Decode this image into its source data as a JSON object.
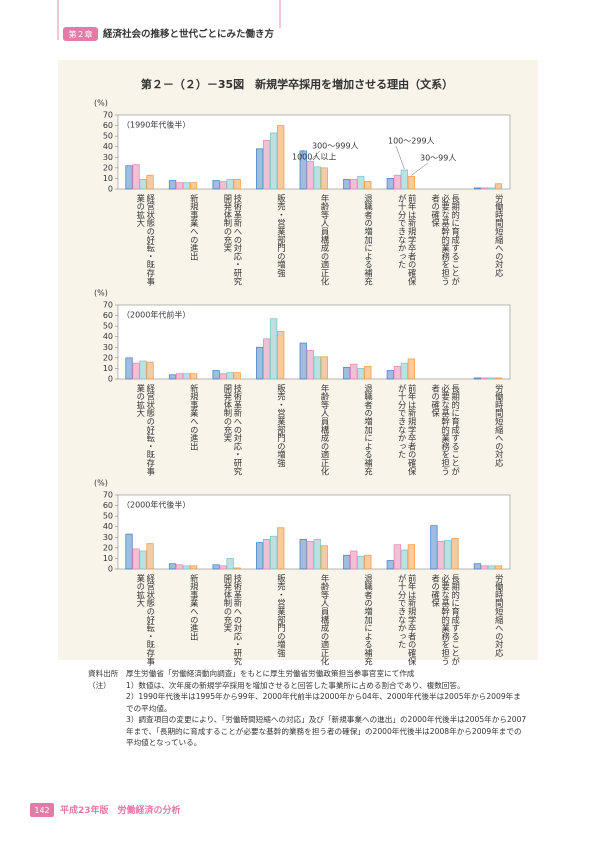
{
  "header": {
    "chapter": "第２章",
    "title": "経済社会の推移と世代ごとにみた働き方"
  },
  "figure_title": "第２－（２）－35図　新規学卒採用を増加させる理由（文系）",
  "chart_data": [
    {
      "type": "bar",
      "y_unit": "(%)",
      "subtitle": "（1990年代後半）",
      "categories": [
        "経営状態の好転・既存事業の拡大",
        "新規事業への進出",
        "技術革新への対応・研究開発体制の充実",
        "販売・営業部門の増強",
        "年齢等人員構成の適正化",
        "退職者の増加による補充",
        "前年は新規学卒者の確保が十分できなかった",
        "長期的に育成することが必要な基幹的業務を担う者の確保",
        "労働時間短縮への対応"
      ],
      "series": [
        {
          "name": "1000人以上",
          "color": "#4f86c6",
          "values": [
            22,
            8,
            8,
            38,
            36,
            9,
            10,
            null,
            1
          ]
        },
        {
          "name": "300～999人",
          "color": "#e58db6",
          "values": [
            23,
            6,
            7,
            46,
            26,
            9,
            13,
            null,
            1
          ]
        },
        {
          "name": "100～299人",
          "color": "#86c7c9",
          "values": [
            9,
            6,
            9,
            53,
            21,
            12,
            18,
            null,
            1
          ]
        },
        {
          "name": "30～99人",
          "color": "#f0a050",
          "values": [
            13,
            6,
            9,
            60,
            20,
            7,
            12,
            null,
            5
          ]
        }
      ],
      "ylim": [
        0,
        70
      ],
      "yticks": [
        0,
        10,
        20,
        30,
        40,
        50,
        60,
        70
      ]
    },
    {
      "type": "bar",
      "y_unit": "(%)",
      "subtitle": "（2000年代前半）",
      "categories": [
        "経営状態の好転・既存事業の拡大",
        "新規事業への進出",
        "技術革新への対応・研究開発体制の充実",
        "販売・営業部門の増強",
        "年齢等人員構成の適正化",
        "退職者の増加による補充",
        "前年は新規学卒者の確保が十分できなかった",
        "長期的に育成することが必要な基幹的業務を担う者の確保",
        "労働時間短縮への対応"
      ],
      "series": [
        {
          "color": "#4f86c6",
          "values": [
            20,
            4,
            8,
            30,
            34,
            11,
            8,
            null,
            1
          ]
        },
        {
          "color": "#e58db6",
          "values": [
            15,
            5,
            5,
            38,
            27,
            14,
            12,
            null,
            1
          ]
        },
        {
          "color": "#86c7c9",
          "values": [
            17,
            5,
            6,
            57,
            21,
            10,
            15,
            null,
            1
          ]
        },
        {
          "color": "#f0a050",
          "values": [
            16,
            5,
            6,
            45,
            21,
            12,
            19,
            null,
            1
          ]
        }
      ],
      "ylim": [
        0,
        70
      ],
      "yticks": [
        0,
        10,
        20,
        30,
        40,
        50,
        60,
        70
      ]
    },
    {
      "type": "bar",
      "y_unit": "(%)",
      "subtitle": "（2000年代後半）",
      "categories": [
        "経営状態の好転・既存事業の拡大",
        "新規事業への進出",
        "技術革新への対応・研究開発体制の充実",
        "販売・営業部門の増強",
        "年齢等人員構成の適正化",
        "退職者の増加による補充",
        "前年は新規学卒者の確保が十分できなかった",
        "長期的に育成することが必要な基幹的業務を担う者の確保",
        "労働時間短縮への対応"
      ],
      "series": [
        {
          "color": "#4f86c6",
          "values": [
            33,
            5,
            4,
            25,
            28,
            13,
            8,
            41,
            5
          ]
        },
        {
          "color": "#e58db6",
          "values": [
            19,
            4,
            3,
            28,
            26,
            17,
            23,
            26,
            3
          ]
        },
        {
          "color": "#86c7c9",
          "values": [
            17,
            3,
            10,
            31,
            28,
            12,
            18,
            27,
            3
          ]
        },
        {
          "color": "#f0a050",
          "values": [
            24,
            3,
            1,
            39,
            22,
            13,
            23,
            29,
            3
          ]
        }
      ],
      "ylim": [
        0,
        70
      ],
      "yticks": [
        0,
        10,
        20,
        30,
        40,
        50,
        60,
        70
      ]
    }
  ],
  "notes": {
    "source_label": "資料出所",
    "source": "厚生労働省「労働経済動向調査」をもとに厚生労働省労働政策担当参事官室にて作成",
    "note_label": "（注）",
    "items": [
      "1）数値は、次年度の新規学卒採用を増加させると回答した事業所に占める割合であり、複数回答。",
      "2）1990年代後半は1995年から99年、2000年代前半は2000年から04年、2000年代後半は2005年から2009年までの平均値。",
      "3）調査項目の変更により、「労働時間短縮への対応」及び「新規事業への進出」の2000年代後半は2005年から2007年まで、「長期的に育成することが必要な基幹的業務を担う者の確保」の2000年代後半は2008年から2009年までの平均値となっている。"
    ]
  },
  "footer": {
    "page": "142",
    "title": "平成23年版　労働経済の分析"
  }
}
